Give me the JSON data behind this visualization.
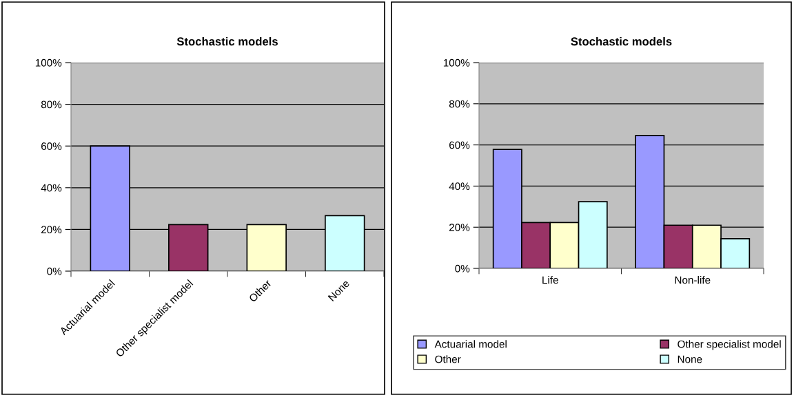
{
  "chart_data": [
    {
      "type": "bar",
      "title": "Stochastic models",
      "categories": [
        "Actuarial model",
        "Other specialist model",
        "Other",
        "None"
      ],
      "values": [
        60,
        22.3,
        22.3,
        26.6
      ],
      "colors": [
        "#9999ff",
        "#993366",
        "#ffffcc",
        "#ccffff"
      ],
      "ylim": [
        0,
        100
      ],
      "yticks": [
        {
          "value": 0,
          "label": "0%"
        },
        {
          "value": 20,
          "label": "20%"
        },
        {
          "value": 40,
          "label": "40%"
        },
        {
          "value": 60,
          "label": "60%"
        },
        {
          "value": 80,
          "label": "80%"
        },
        {
          "value": 100,
          "label": "100%"
        }
      ],
      "grid": "y",
      "legend": false
    },
    {
      "type": "bar",
      "title": "Stochastic models",
      "categories": [
        "Life",
        "Non-life"
      ],
      "series": [
        {
          "name": "Actuarial model",
          "color": "#9999ff",
          "values": [
            57.8,
            64.6
          ]
        },
        {
          "name": "Other specialist model",
          "color": "#993366",
          "values": [
            22.3,
            21.0
          ]
        },
        {
          "name": "Other",
          "color": "#ffffcc",
          "values": [
            22.3,
            21.0
          ]
        },
        {
          "name": "None",
          "color": "#ccffff",
          "values": [
            32.4,
            14.4
          ]
        }
      ],
      "ylim": [
        0,
        100
      ],
      "yticks": [
        {
          "value": 0,
          "label": "0%"
        },
        {
          "value": 20,
          "label": "20%"
        },
        {
          "value": 40,
          "label": "40%"
        },
        {
          "value": 60,
          "label": "60%"
        },
        {
          "value": 80,
          "label": "80%"
        },
        {
          "value": 100,
          "label": "100%"
        }
      ],
      "grid": "y",
      "legend": "bottom"
    }
  ]
}
